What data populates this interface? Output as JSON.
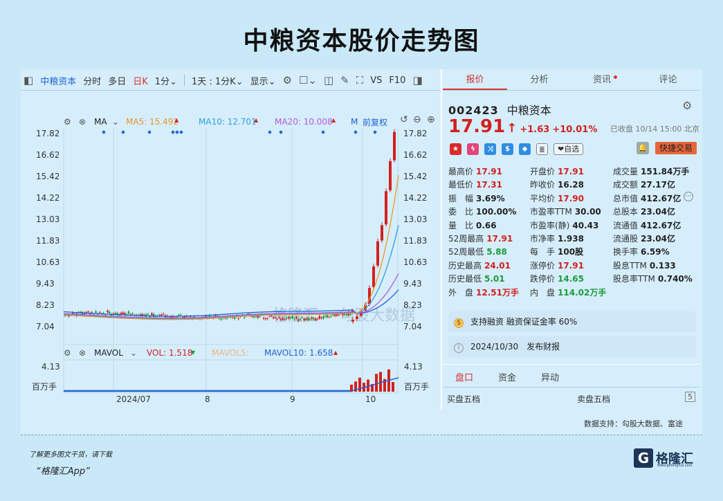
{
  "title": "中粮资本股价走势图",
  "toolbar": {
    "stock_name": "中粮资本",
    "fenshi": "分时",
    "duori": "多日",
    "rik": "日K",
    "period": "1分",
    "range": "1天 : 1分K",
    "display": "显示",
    "vs": "VS",
    "f10": "F10"
  },
  "ma": {
    "label": "MA",
    "ma5": "MA5: 15.492",
    "ma10": "MA10: 12.701",
    "ma20": "MA20: 10.008",
    "m": "M",
    "fuquan": "前复权"
  },
  "vol": {
    "label": "MAVOL",
    "vol": "VOL: 1.518",
    "mavol5": "MAVOL5:",
    "mavol10": "MAVOL10: 1.658",
    "max": "4.13",
    "unit": "百万手"
  },
  "colors": {
    "up": "#d22020",
    "down": "#1e9a3a",
    "ma5": "#e8962e",
    "ma10": "#2f9de0",
    "ma20": "#b25ad8",
    "ma_extra": "#1f5fd6",
    "accent_blue": "#1f62d6"
  },
  "chart_data": {
    "type": "candlestick",
    "y_ticks": [
      "17.82",
      "16.62",
      "15.42",
      "14.22",
      "13.03",
      "11.83",
      "10.63",
      "9.43",
      "8.23",
      "7.04"
    ],
    "ylim": [
      7.04,
      17.82
    ],
    "x_ticks": [
      "2024/07",
      "8",
      "9",
      "10"
    ],
    "recent_closes": [
      7.42,
      7.6,
      7.9,
      8.25,
      9.2,
      10.4,
      11.8,
      12.7,
      14.6,
      16.28,
      17.91
    ],
    "ma5_last": 15.492,
    "ma10_last": 12.701,
    "ma20_last": 10.008,
    "vol_max": 4.13,
    "vol_last": 1.518,
    "mavol10_last": 1.658
  },
  "tabs": [
    {
      "label": "报价",
      "active": true
    },
    {
      "label": "分析",
      "active": false
    },
    {
      "label": "资讯",
      "active": false,
      "dot": true
    },
    {
      "label": "评论",
      "active": false
    }
  ],
  "quote": {
    "code": "002423",
    "name": "中粮资本",
    "price": "17.91",
    "arrow": "↑",
    "change": "+1.63",
    "pct": "+10.01%",
    "status": "已收盘 10/14 15:00 北京",
    "zixuan": "❤自选",
    "quick_trade": "快捷交易"
  },
  "stats": [
    [
      {
        "l": "最高价",
        "v": "17.91",
        "c": "up"
      },
      {
        "l": "开盘价",
        "v": "17.91",
        "c": "up"
      },
      {
        "l": "成交量",
        "v": "151.84万手",
        "c": "n"
      }
    ],
    [
      {
        "l": "最低价",
        "v": "17.31",
        "c": "up"
      },
      {
        "l": "昨收价",
        "v": "16.28",
        "c": "n"
      },
      {
        "l": "成交额",
        "v": "27.17亿",
        "c": "n"
      }
    ],
    [
      {
        "l": "振　幅",
        "v": "3.69%",
        "c": "n"
      },
      {
        "l": "平均价",
        "v": "17.90",
        "c": "up"
      },
      {
        "l": "总市值",
        "v": "412.67亿",
        "c": "n"
      }
    ],
    [
      {
        "l": "委　比",
        "v": "100.00%",
        "c": "n"
      },
      {
        "l": "市盈率TTM",
        "v": "30.00",
        "c": "n"
      },
      {
        "l": "总股本",
        "v": "23.04亿",
        "c": "n"
      }
    ],
    [
      {
        "l": "量　比",
        "v": "0.66",
        "c": "n"
      },
      {
        "l": "市盈率(静)",
        "v": "40.43",
        "c": "n"
      },
      {
        "l": "流通值",
        "v": "412.67亿",
        "c": "n"
      }
    ],
    [
      {
        "l": "52周最高",
        "v": "17.91",
        "c": "up"
      },
      {
        "l": "市净率",
        "v": "1.938",
        "c": "n"
      },
      {
        "l": "流通股",
        "v": "23.04亿",
        "c": "n"
      }
    ],
    [
      {
        "l": "52周最低",
        "v": "5.88",
        "c": "down"
      },
      {
        "l": "每　手",
        "v": "100股",
        "c": "n"
      },
      {
        "l": "换手率",
        "v": "6.59%",
        "c": "n"
      }
    ],
    [
      {
        "l": "历史最高",
        "v": "24.01",
        "c": "up"
      },
      {
        "l": "涨停价",
        "v": "17.91",
        "c": "up"
      },
      {
        "l": "股息TTM",
        "v": "0.133",
        "c": "n"
      }
    ],
    [
      {
        "l": "历史最低",
        "v": "5.01",
        "c": "down"
      },
      {
        "l": "跌停价",
        "v": "14.65",
        "c": "down"
      },
      {
        "l": "股息率TTM",
        "v": "0.740%",
        "c": "n"
      }
    ],
    [
      {
        "l": "外　盘",
        "v": "12.51万手",
        "c": "up"
      },
      {
        "l": "内　盘",
        "v": "114.02万手",
        "c": "down"
      },
      {
        "l": "",
        "v": "",
        "c": "n"
      }
    ]
  ],
  "notices": [
    {
      "icon": "$",
      "text": "支持融资 融资保证金率 60%"
    },
    {
      "icon": "i",
      "text": "2024/10/30　发布财报"
    }
  ],
  "sub_tabs": [
    "盘口",
    "资金",
    "异动"
  ],
  "five": {
    "buy": "买盘五档",
    "sell": "卖盘五档",
    "badge": "5"
  },
  "datasrc": "数据支持：勾股大数据、富途",
  "promo": {
    "line1": "了解更多图文干货，请下载",
    "line2": "“格隆汇App”"
  },
  "logo": {
    "text": "格隆汇",
    "sub": "www.gelonghui.com"
  },
  "watermark": {
    "a": "格隆汇",
    "b": "勾股大数据",
    "url": "www.gogudata.com"
  }
}
